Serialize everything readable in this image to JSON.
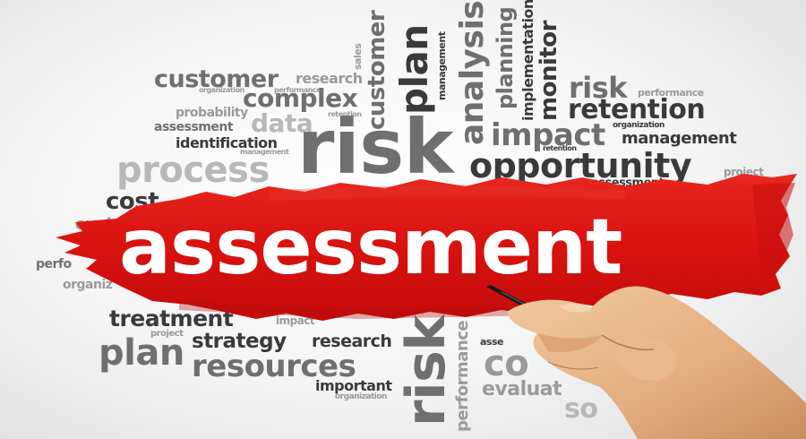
{
  "headline": "assessment",
  "colors": {
    "brush": "#e01a1a",
    "brush_dark": "#b80f0f",
    "text_dark": "#3a3a3a",
    "text_mid": "#6f6f6f",
    "text_light": "#9a9a9a"
  },
  "words": {
    "customer_h": "customer",
    "research_top": "research",
    "sales": "sales",
    "customer_v": "customer",
    "plan_v": "plan",
    "management_v": "management",
    "analysis_v": "analysis",
    "planning_v": "planning",
    "implementation_v": "implementation",
    "monitor_v": "monitor",
    "organization_1": "organization",
    "performance_1": "performance",
    "complex": "complex",
    "probability": "probability",
    "retention_1": "retention",
    "assessment_1": "assessment",
    "data": "data",
    "identification": "identification",
    "risk_big": "risk",
    "management_small": "management",
    "process": "process",
    "risk_right": "risk",
    "performance_2": "performance",
    "retention_big": "retention",
    "impact": "impact",
    "organization_2": "organization",
    "management_right": "management",
    "retention_small": "retention",
    "opportunity": "opportunity",
    "project_1": "project",
    "assessment_right": "assessment",
    "cost": "cost",
    "evaluation_left": "evalua",
    "performance_left": "perfo",
    "organization_left": "organiz",
    "treatment": "treatment",
    "impact_small": "impact",
    "project_2": "project",
    "plan_bottom": "plan",
    "strategy": "strategy",
    "research_bottom": "research",
    "resources": "resources",
    "important": "important",
    "organization_3": "organization",
    "risk_v": "risk",
    "performance_v": "performance",
    "assessment_bottom": "asse",
    "cost_bottom": "co",
    "evaluation_bottom": "evaluat",
    "so": "so"
  }
}
